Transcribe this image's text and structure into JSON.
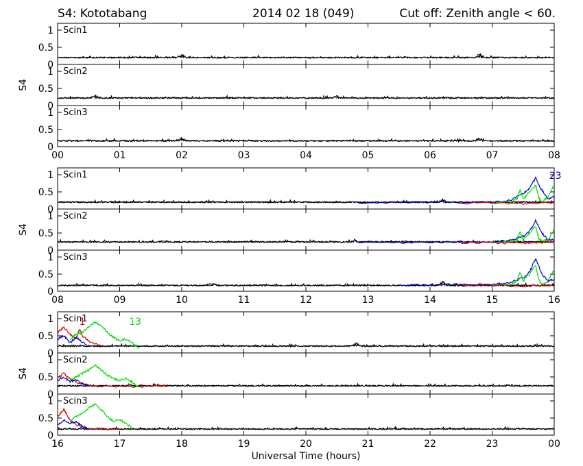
{
  "header": {
    "station": "S4: Kototabang",
    "date": "2014 02 18 (049)",
    "cutoff": "Cut off: Zenith angle < 60."
  },
  "chart_data": {
    "type": "line",
    "xlabel": "Universal Time (hours)",
    "ylabel": "S4",
    "ylim": [
      0,
      1.2
    ],
    "yticks": [
      0,
      0.5,
      1
    ],
    "ytick_labels": [
      "0",
      "0.5",
      "1"
    ],
    "colors": {
      "black": "#000000",
      "red": "#dd0000",
      "green": "#00dd00",
      "blue": "#0000cc"
    },
    "groups": [
      {
        "xrange": [
          0,
          8
        ],
        "xtick_labels": [
          "00",
          "01",
          "02",
          "03",
          "04",
          "05",
          "06",
          "07",
          "08"
        ],
        "panels": [
          {
            "label": "Scin1",
            "baseline": 0.2,
            "noise": 0.04,
            "bumps": [
              [
                2.0,
                0.13
              ],
              [
                6.8,
                0.12
              ]
            ]
          },
          {
            "label": "Scin2",
            "baseline": 0.22,
            "noise": 0.04,
            "bumps": [
              [
                0.6,
                0.08
              ],
              [
                4.5,
                0.07
              ]
            ]
          },
          {
            "label": "Scin3",
            "baseline": 0.17,
            "noise": 0.04,
            "bumps": [
              [
                2.0,
                0.1
              ],
              [
                6.8,
                0.1
              ]
            ]
          }
        ],
        "series": []
      },
      {
        "xrange": [
          8,
          16
        ],
        "xtick_labels": [
          "08",
          "09",
          "10",
          "11",
          "12",
          "13",
          "14",
          "15",
          "16"
        ],
        "panels": [
          {
            "label": "Scin1",
            "baseline": 0.2,
            "noise": 0.04,
            "bumps": [
              [
                14.2,
                0.12
              ]
            ]
          },
          {
            "label": "Scin2",
            "baseline": 0.24,
            "noise": 0.04,
            "bumps": [
              [
                12.8,
                0.08
              ]
            ]
          },
          {
            "label": "Scin3",
            "baseline": 0.17,
            "noise": 0.04,
            "bumps": [
              [
                10.5,
                0.12
              ],
              [
                14.2,
                0.15
              ]
            ]
          }
        ],
        "prn_labels": [
          {
            "panel": 0,
            "text": "23",
            "color": "blue",
            "x": 15.92,
            "y": 0.88
          }
        ],
        "series": [
          {
            "color": "blue",
            "panel": 0,
            "points": [
              [
                12.8,
                0.2
              ],
              [
                13.5,
                0.18
              ],
              [
                14.0,
                0.2
              ],
              [
                14.5,
                0.2
              ],
              [
                15.0,
                0.2
              ],
              [
                15.3,
                0.25
              ],
              [
                15.5,
                0.45
              ],
              [
                15.6,
                0.6
              ],
              [
                15.7,
                0.9
              ],
              [
                15.8,
                0.55
              ],
              [
                15.9,
                0.3
              ],
              [
                16.0,
                0.35
              ]
            ]
          },
          {
            "color": "green",
            "panel": 0,
            "points": [
              [
                15.0,
                0.18
              ],
              [
                15.3,
                0.2
              ],
              [
                15.4,
                0.3
              ],
              [
                15.45,
                0.55
              ],
              [
                15.5,
                0.3
              ],
              [
                15.6,
                0.5
              ],
              [
                15.7,
                0.7
              ],
              [
                15.75,
                0.35
              ],
              [
                15.8,
                0.2
              ],
              [
                15.9,
                0.35
              ],
              [
                16.0,
                0.7
              ]
            ]
          },
          {
            "color": "red",
            "panel": 0,
            "points": [
              [
                14.5,
                0.17
              ],
              [
                15.0,
                0.18
              ],
              [
                15.5,
                0.15
              ],
              [
                15.8,
                0.18
              ],
              [
                16.0,
                0.2
              ]
            ]
          },
          {
            "color": "blue",
            "panel": 1,
            "points": [
              [
                12.8,
                0.24
              ],
              [
                13.5,
                0.22
              ],
              [
                14.0,
                0.24
              ],
              [
                14.5,
                0.24
              ],
              [
                15.0,
                0.24
              ],
              [
                15.3,
                0.28
              ],
              [
                15.5,
                0.4
              ],
              [
                15.6,
                0.55
              ],
              [
                15.7,
                0.85
              ],
              [
                15.8,
                0.5
              ],
              [
                15.9,
                0.3
              ],
              [
                16.0,
                0.3
              ]
            ]
          },
          {
            "color": "green",
            "panel": 1,
            "points": [
              [
                15.0,
                0.22
              ],
              [
                15.3,
                0.25
              ],
              [
                15.4,
                0.3
              ],
              [
                15.45,
                0.55
              ],
              [
                15.5,
                0.3
              ],
              [
                15.6,
                0.5
              ],
              [
                15.7,
                0.7
              ],
              [
                15.75,
                0.35
              ],
              [
                15.8,
                0.25
              ],
              [
                15.9,
                0.3
              ],
              [
                16.0,
                0.6
              ]
            ]
          },
          {
            "color": "red",
            "panel": 1,
            "points": [
              [
                14.5,
                0.22
              ],
              [
                15.0,
                0.22
              ],
              [
                15.5,
                0.2
              ],
              [
                15.8,
                0.22
              ],
              [
                16.0,
                0.25
              ]
            ]
          },
          {
            "color": "blue",
            "panel": 2,
            "points": [
              [
                13.5,
                0.17
              ],
              [
                14.0,
                0.18
              ],
              [
                14.5,
                0.2
              ],
              [
                15.0,
                0.2
              ],
              [
                15.3,
                0.25
              ],
              [
                15.5,
                0.4
              ],
              [
                15.6,
                0.55
              ],
              [
                15.7,
                0.95
              ],
              [
                15.8,
                0.5
              ],
              [
                15.9,
                0.3
              ],
              [
                16.0,
                0.35
              ]
            ]
          },
          {
            "color": "green",
            "panel": 2,
            "points": [
              [
                15.0,
                0.17
              ],
              [
                15.3,
                0.2
              ],
              [
                15.4,
                0.3
              ],
              [
                15.45,
                0.55
              ],
              [
                15.5,
                0.3
              ],
              [
                15.6,
                0.5
              ],
              [
                15.7,
                0.75
              ],
              [
                15.75,
                0.35
              ],
              [
                15.8,
                0.2
              ],
              [
                15.9,
                0.3
              ],
              [
                16.0,
                0.65
              ]
            ]
          },
          {
            "color": "red",
            "panel": 2,
            "points": [
              [
                14.5,
                0.16
              ],
              [
                15.0,
                0.17
              ],
              [
                15.5,
                0.15
              ],
              [
                15.8,
                0.17
              ],
              [
                16.0,
                0.2
              ]
            ]
          }
        ]
      },
      {
        "xrange": [
          16,
          24
        ],
        "xtick_labels": [
          "16",
          "17",
          "18",
          "19",
          "20",
          "21",
          "22",
          "23",
          "00"
        ],
        "panels": [
          {
            "label": "Scin1",
            "baseline": 0.2,
            "noise": 0.04,
            "bumps": [
              [
                20.8,
                0.12
              ]
            ]
          },
          {
            "label": "Scin2",
            "baseline": 0.24,
            "noise": 0.04,
            "bumps": []
          },
          {
            "label": "Scin3",
            "baseline": 0.18,
            "noise": 0.04,
            "bumps": []
          }
        ],
        "prn_labels": [
          {
            "panel": 0,
            "text": "13",
            "color": "green",
            "x": 17.15,
            "y": 0.82
          },
          {
            "panel": 0,
            "text": "1",
            "color": "red",
            "x": 16.35,
            "y": 0.82
          }
        ],
        "series": [
          {
            "color": "red",
            "panel": 0,
            "points": [
              [
                16.0,
                0.6
              ],
              [
                16.1,
                0.75
              ],
              [
                16.2,
                0.55
              ],
              [
                16.3,
                0.4
              ],
              [
                16.35,
                0.7
              ],
              [
                16.4,
                0.5
              ],
              [
                16.5,
                0.35
              ],
              [
                16.7,
                0.2
              ]
            ]
          },
          {
            "color": "blue",
            "panel": 0,
            "points": [
              [
                16.0,
                0.4
              ],
              [
                16.1,
                0.5
              ],
              [
                16.2,
                0.3
              ],
              [
                16.3,
                0.45
              ],
              [
                16.4,
                0.3
              ],
              [
                16.5,
                0.2
              ]
            ]
          },
          {
            "color": "green",
            "panel": 0,
            "points": [
              [
                16.2,
                0.4
              ],
              [
                16.3,
                0.55
              ],
              [
                16.4,
                0.6
              ],
              [
                16.5,
                0.75
              ],
              [
                16.6,
                0.9
              ],
              [
                16.7,
                0.8
              ],
              [
                16.8,
                0.6
              ],
              [
                16.9,
                0.45
              ],
              [
                17.0,
                0.35
              ],
              [
                17.1,
                0.4
              ],
              [
                17.2,
                0.3
              ],
              [
                17.3,
                0.15
              ]
            ]
          },
          {
            "color": "red",
            "panel": 1,
            "points": [
              [
                16.0,
                0.5
              ],
              [
                16.1,
                0.6
              ],
              [
                16.2,
                0.45
              ],
              [
                16.3,
                0.35
              ],
              [
                16.5,
                0.25
              ],
              [
                16.8,
                0.22
              ],
              [
                17.5,
                0.22
              ],
              [
                17.8,
                0.25
              ]
            ]
          },
          {
            "color": "blue",
            "panel": 1,
            "points": [
              [
                16.0,
                0.4
              ],
              [
                16.1,
                0.5
              ],
              [
                16.2,
                0.35
              ],
              [
                16.3,
                0.4
              ],
              [
                16.4,
                0.3
              ],
              [
                16.5,
                0.25
              ]
            ]
          },
          {
            "color": "green",
            "panel": 1,
            "points": [
              [
                16.2,
                0.4
              ],
              [
                16.3,
                0.5
              ],
              [
                16.4,
                0.6
              ],
              [
                16.5,
                0.7
              ],
              [
                16.6,
                0.85
              ],
              [
                16.7,
                0.7
              ],
              [
                16.8,
                0.55
              ],
              [
                16.9,
                0.45
              ],
              [
                17.0,
                0.4
              ],
              [
                17.1,
                0.45
              ],
              [
                17.2,
                0.35
              ],
              [
                17.3,
                0.2
              ]
            ]
          },
          {
            "color": "red",
            "panel": 2,
            "points": [
              [
                16.0,
                0.55
              ],
              [
                16.1,
                0.75
              ],
              [
                16.15,
                0.6
              ],
              [
                16.2,
                0.45
              ],
              [
                16.3,
                0.3
              ],
              [
                16.5,
                0.2
              ],
              [
                17.0,
                0.18
              ]
            ]
          },
          {
            "color": "blue",
            "panel": 2,
            "points": [
              [
                16.0,
                0.3
              ],
              [
                16.1,
                0.45
              ],
              [
                16.2,
                0.35
              ],
              [
                16.3,
                0.4
              ],
              [
                16.4,
                0.25
              ],
              [
                16.5,
                0.2
              ]
            ]
          },
          {
            "color": "green",
            "panel": 2,
            "points": [
              [
                16.2,
                0.4
              ],
              [
                16.3,
                0.55
              ],
              [
                16.4,
                0.65
              ],
              [
                16.5,
                0.8
              ],
              [
                16.6,
                0.9
              ],
              [
                16.7,
                0.75
              ],
              [
                16.8,
                0.55
              ],
              [
                16.9,
                0.4
              ],
              [
                17.0,
                0.45
              ],
              [
                17.1,
                0.35
              ],
              [
                17.2,
                0.2
              ]
            ]
          }
        ]
      }
    ]
  }
}
